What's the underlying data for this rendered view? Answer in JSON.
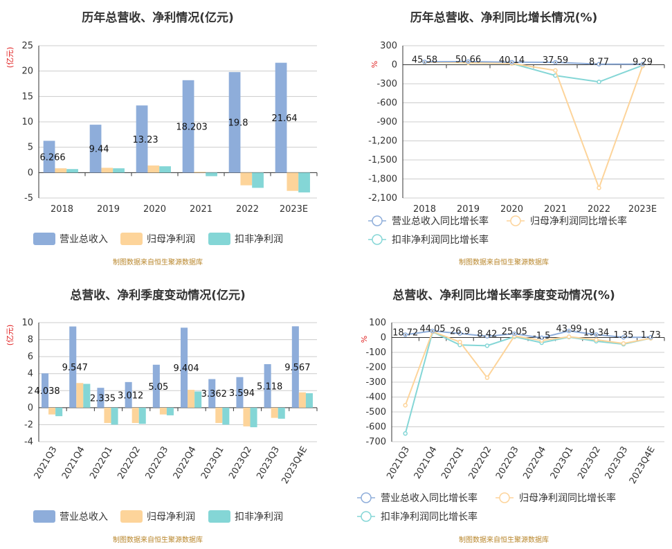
{
  "colors": {
    "revenue": "#8eadda",
    "net": "#fdd49a",
    "deducted": "#84d6d6",
    "revenue_line": "#8eadda",
    "net_line": "#fdd49a",
    "deducted_line": "#84d6d6"
  },
  "source_note": "制图数据来自恒生聚源数据库",
  "chart_data": [
    {
      "type": "bar",
      "title": "历年总营收、净利情况(亿元)",
      "unit_label": "(亿元)",
      "categories": [
        "2018",
        "2019",
        "2020",
        "2021",
        "2022",
        "2023E"
      ],
      "ylim": [
        -5,
        25
      ],
      "yticks": [
        -5,
        0,
        5,
        10,
        15,
        20,
        25
      ],
      "series": [
        {
          "name": "营业总收入",
          "values": [
            6.266,
            9.44,
            13.23,
            18.203,
            19.8,
            21.64
          ]
        },
        {
          "name": "归母净利润",
          "values": [
            0.85,
            0.95,
            1.4,
            0.15,
            -2.5,
            -3.6
          ]
        },
        {
          "name": "扣非净利润",
          "values": [
            0.7,
            0.85,
            1.25,
            -0.7,
            -3.0,
            -3.9
          ]
        }
      ],
      "data_labels": [
        "6.266",
        "9.44",
        "13.23",
        "18.203",
        "19.8",
        "21.64"
      ]
    },
    {
      "type": "line",
      "title": "历年总营收、净利同比增长情况(%)",
      "unit_label": "%",
      "categories": [
        "2018",
        "2019",
        "2020",
        "2021",
        "2022",
        "2023E"
      ],
      "ylim": [
        -2100,
        300
      ],
      "yticks": [
        300,
        0,
        -300,
        -600,
        -900,
        -1200,
        -1500,
        -1800,
        -2100
      ],
      "ytick_labels": [
        "300",
        "0",
        "-300",
        "-600",
        "-900",
        "-1,200",
        "-1,500",
        "-1,800",
        "-2,100"
      ],
      "series": [
        {
          "name": "营业总收入同比增长率",
          "values": [
            45.58,
            50.66,
            40.14,
            37.59,
            8.77,
            9.29
          ]
        },
        {
          "name": "归母净利润同比增长率",
          "values": [
            40,
            30,
            20,
            -90,
            -1940,
            -20
          ]
        },
        {
          "name": "扣非净利润同比增长率",
          "values": [
            40,
            30,
            20,
            -170,
            -270,
            -10
          ]
        }
      ],
      "data_labels": [
        "45.58",
        "50.66",
        "40.14",
        "37.59",
        "8.77",
        "9.29"
      ]
    },
    {
      "type": "bar",
      "title": "总营收、净利季度变动情况(亿元)",
      "unit_label": "(亿元)",
      "categories": [
        "2021Q3",
        "2021Q4",
        "2022Q1",
        "2022Q2",
        "2022Q3",
        "2022Q4",
        "2023Q1",
        "2023Q2",
        "2023Q3",
        "2023Q4E"
      ],
      "ylim": [
        -4,
        10
      ],
      "yticks": [
        -4,
        -2,
        0,
        2,
        4,
        6,
        8,
        10
      ],
      "series": [
        {
          "name": "营业总收入",
          "values": [
            4.038,
            9.547,
            2.335,
            3.012,
            5.05,
            9.404,
            3.362,
            3.594,
            5.118,
            9.567
          ]
        },
        {
          "name": "归母净利润",
          "values": [
            -0.8,
            2.9,
            -1.8,
            -1.8,
            -0.8,
            2.1,
            -1.8,
            -2.2,
            -1.2,
            1.8
          ]
        },
        {
          "name": "扣非净利润",
          "values": [
            -1.0,
            2.8,
            -2.0,
            -1.9,
            -0.9,
            1.9,
            -2.0,
            -2.3,
            -1.3,
            1.7
          ]
        }
      ],
      "data_labels": [
        "4.038",
        "9.547",
        "2.335",
        "3.012",
        "5.05",
        "9.404",
        "3.362",
        "3.594",
        "5.118",
        "9.567"
      ]
    },
    {
      "type": "line",
      "title": "总营收、净利同比增长率季度变动情况(%)",
      "unit_label": "%",
      "categories": [
        "2021Q3",
        "2021Q4",
        "2022Q1",
        "2022Q2",
        "2022Q3",
        "2022Q4",
        "2023Q1",
        "2023Q2",
        "2023Q3",
        "2023Q4E"
      ],
      "ylim": [
        -700,
        100
      ],
      "yticks": [
        100,
        0,
        -100,
        -200,
        -300,
        -400,
        -500,
        -600,
        -700
      ],
      "ytick_labels": [
        "100",
        "0",
        "-100",
        "-200",
        "-300",
        "-400",
        "-500",
        "-600",
        "-700"
      ],
      "series": [
        {
          "name": "营业总收入同比增长率",
          "values": [
            18.72,
            44.05,
            26.9,
            8.42,
            25.05,
            -1.5,
            43.99,
            19.34,
            1.35,
            1.73
          ]
        },
        {
          "name": "归母净利润同比增长率",
          "values": [
            -455,
            40,
            -30,
            -270,
            10,
            -20,
            5,
            -15,
            -40,
            -5
          ]
        },
        {
          "name": "扣非净利润同比增长率",
          "values": [
            -645,
            38,
            -50,
            -55,
            5,
            -35,
            3,
            -25,
            -45,
            -5
          ]
        }
      ],
      "data_labels": [
        "18.72",
        "44.05",
        "26.9",
        "8.42",
        "25.05",
        "-1.5",
        "43.99",
        "19.34",
        "1.35",
        "1.73"
      ]
    }
  ]
}
